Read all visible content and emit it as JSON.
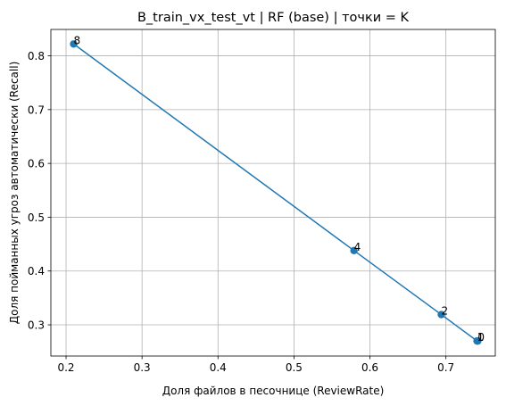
{
  "chart_data": {
    "type": "line",
    "title": "B_train_vx_test_vt | RF (base) | точки = K",
    "xlabel": "Доля файлов в песочнице (ReviewRate)",
    "ylabel": "Доля пойманных угроз автоматически (Recall)",
    "xlim": [
      0.18,
      0.765
    ],
    "ylim": [
      0.242,
      0.849
    ],
    "xticks": [
      0.2,
      0.3,
      0.4,
      0.5,
      0.6,
      0.7
    ],
    "xtick_labels": [
      "0.2",
      "0.3",
      "0.4",
      "0.5",
      "0.6",
      "0.7"
    ],
    "yticks": [
      0.3,
      0.4,
      0.5,
      0.6,
      0.7,
      0.8
    ],
    "ytick_labels": [
      "0.3",
      "0.4",
      "0.5",
      "0.6",
      "0.7",
      "0.8"
    ],
    "grid": true,
    "legend": false,
    "color": "#1f77b4",
    "series": [
      {
        "points": [
          {
            "x": 0.21,
            "y": 0.822,
            "label": "8"
          },
          {
            "x": 0.579,
            "y": 0.438,
            "label": "4"
          },
          {
            "x": 0.694,
            "y": 0.319,
            "label": "2"
          },
          {
            "x": 0.741,
            "y": 0.27,
            "label": "1"
          },
          {
            "x": 0.742,
            "y": 0.27,
            "label": "0"
          }
        ]
      }
    ]
  }
}
